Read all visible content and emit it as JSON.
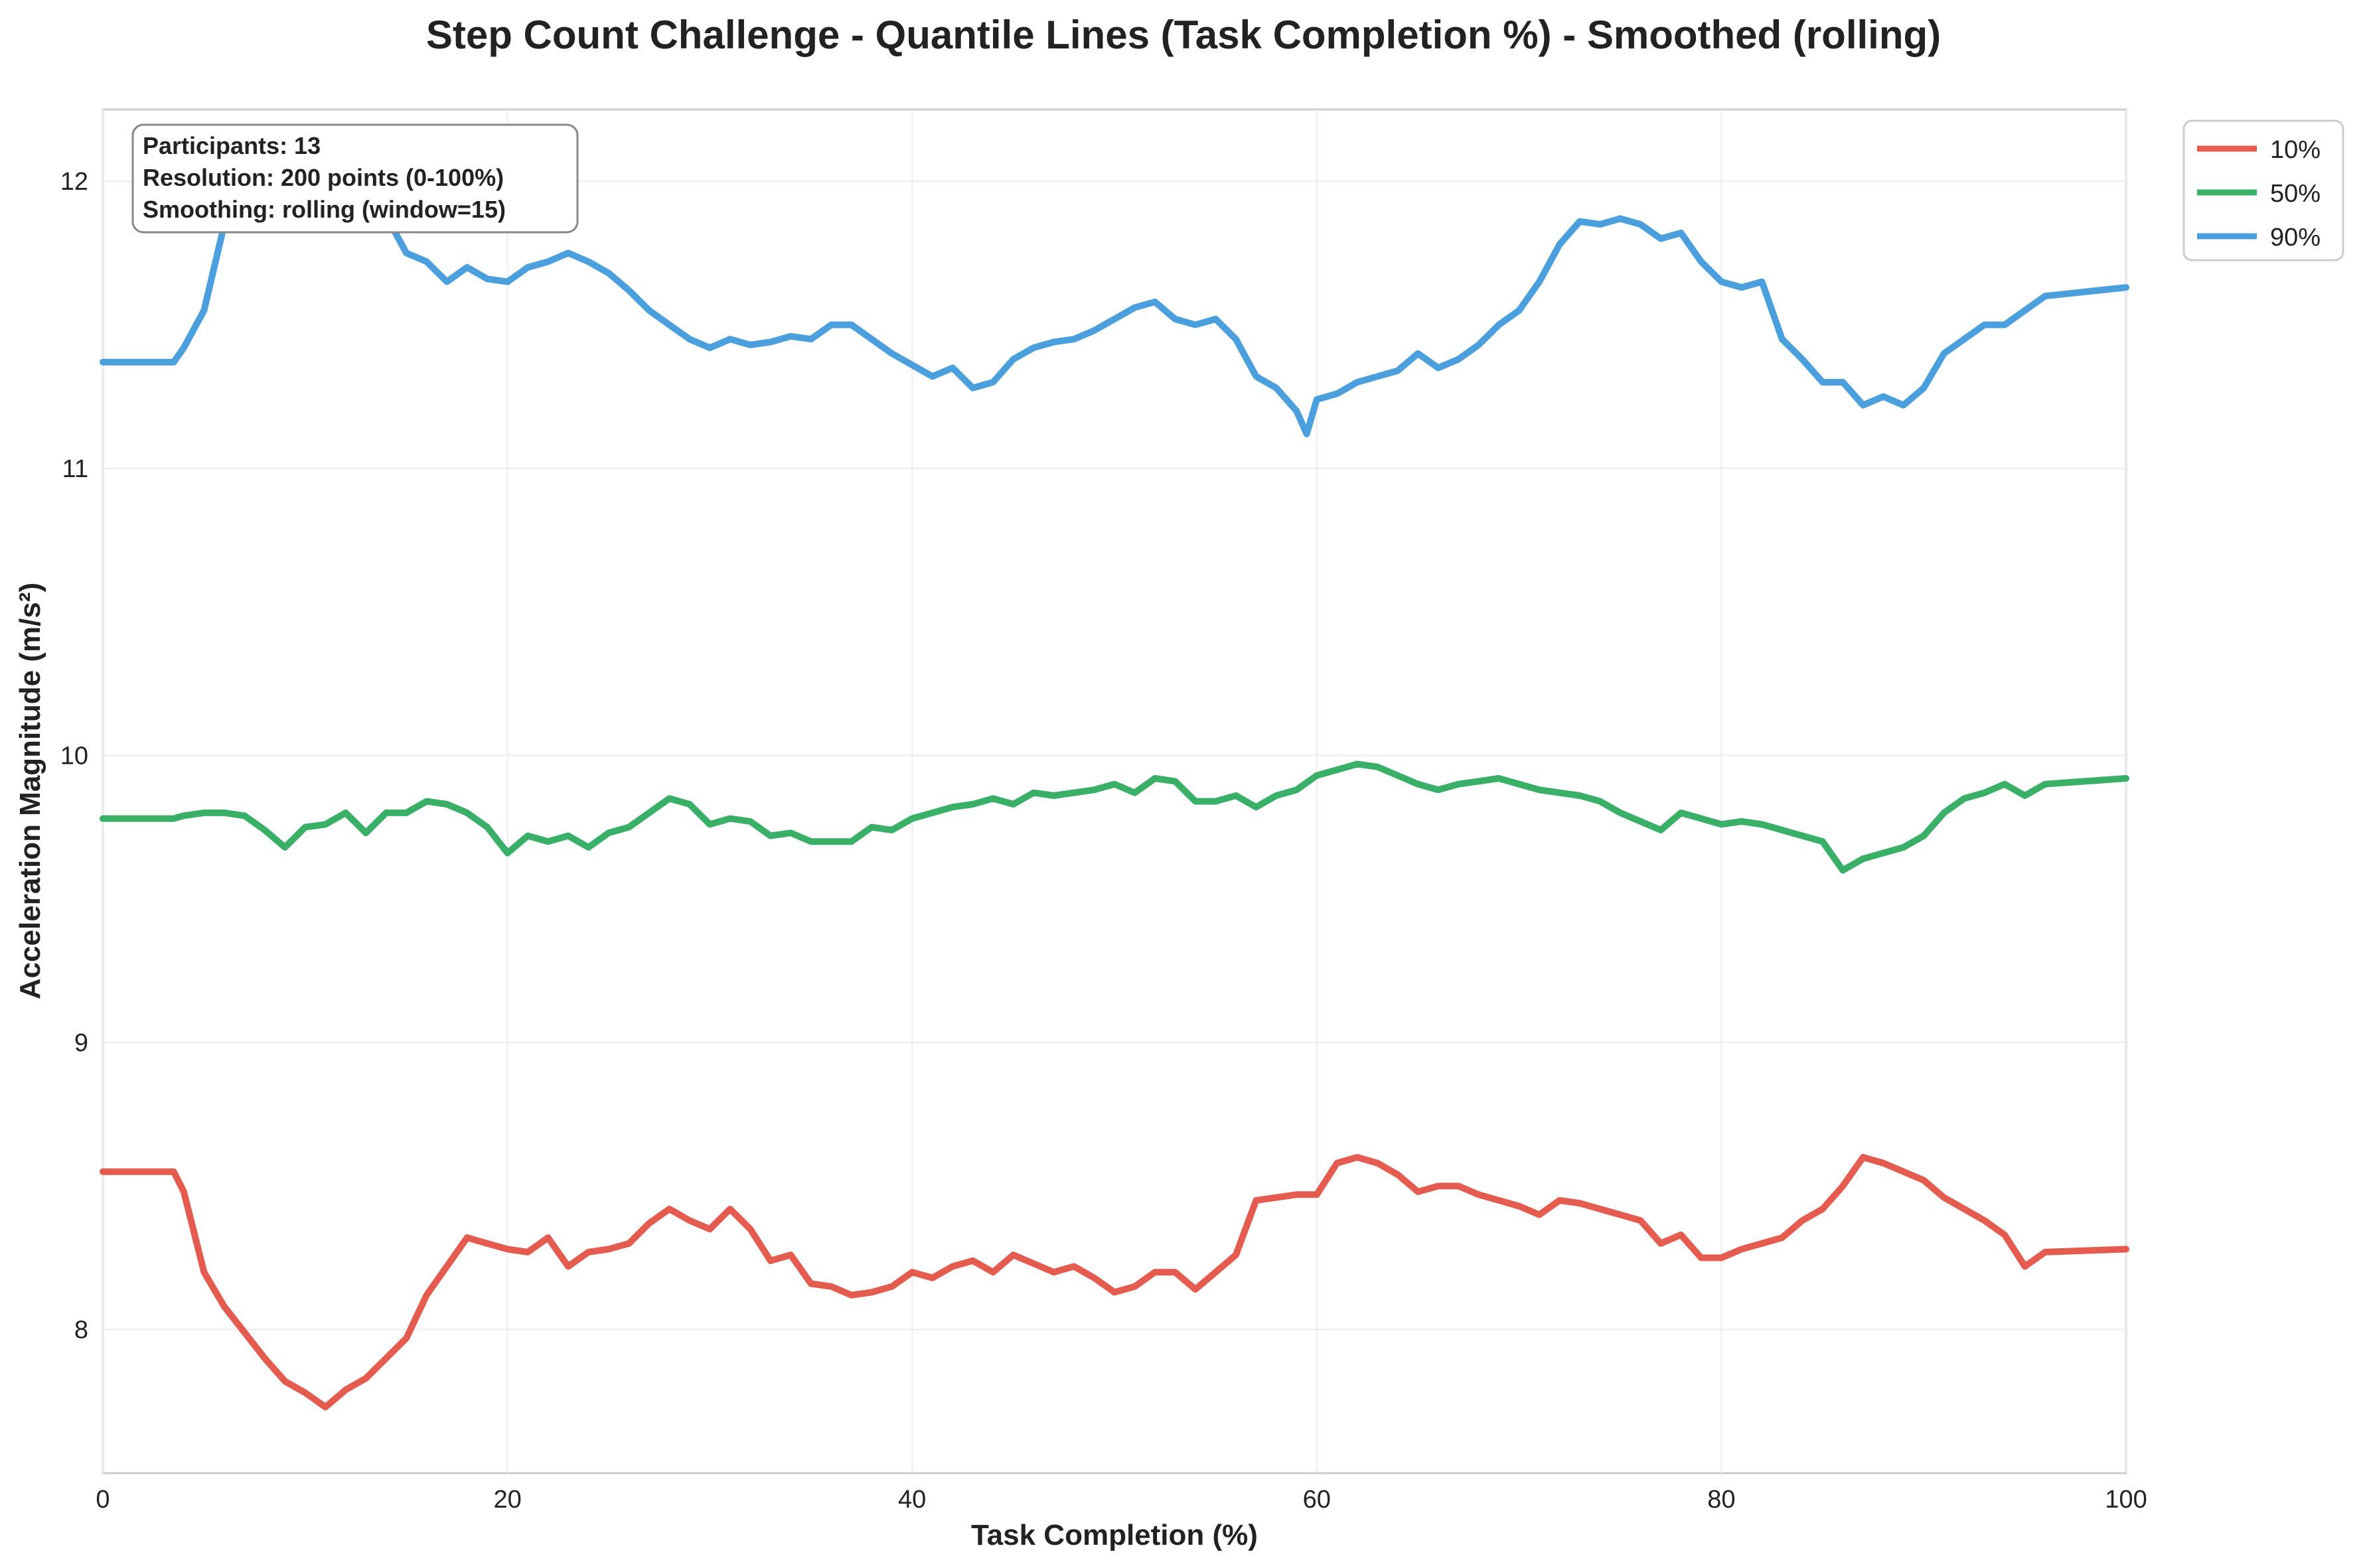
{
  "chart_data": {
    "type": "line",
    "title": "Step Count Challenge - Quantile Lines (Task Completion %) - Smoothed (rolling)",
    "xlabel": "Task Completion (%)",
    "ylabel": "Acceleration Magnitude (m/s²)",
    "xlim": [
      0,
      100
    ],
    "ylim": [
      7.5,
      12.25
    ],
    "xticks": [
      0,
      20,
      40,
      60,
      80,
      100
    ],
    "yticks": [
      8,
      9,
      10,
      11,
      12
    ],
    "grid": true,
    "legend_position": "outside-top-right",
    "info_box": [
      "Participants: 13",
      "Resolution: 200 points (0-100%)",
      "Smoothing: rolling (window=15)"
    ],
    "series": [
      {
        "name": "10%",
        "color": "#e45c4f",
        "x": [
          0,
          3.5,
          4,
          5,
          6,
          7,
          8,
          9,
          10,
          11,
          12,
          13,
          14,
          15,
          16,
          17,
          18,
          19,
          20,
          21,
          22,
          23,
          24,
          25,
          26,
          27,
          28,
          29,
          30,
          31,
          32,
          33,
          34,
          35,
          36,
          37,
          38,
          39,
          40,
          41,
          42,
          43,
          44,
          45,
          46,
          47,
          48,
          49,
          50,
          51,
          52,
          53,
          54,
          55,
          56,
          57,
          58,
          59,
          60,
          61,
          62,
          63,
          64,
          65,
          66,
          67,
          68,
          69,
          70,
          71,
          72,
          73,
          74,
          75,
          76,
          77,
          78,
          79,
          80,
          81,
          82,
          83,
          84,
          85,
          86,
          87,
          88,
          89,
          90,
          91,
          92,
          93,
          94,
          95,
          96,
          100
        ],
        "y": [
          8.55,
          8.55,
          8.48,
          8.2,
          8.08,
          7.99,
          7.9,
          7.82,
          7.78,
          7.73,
          7.79,
          7.83,
          7.9,
          7.97,
          8.12,
          8.22,
          8.32,
          8.3,
          8.28,
          8.27,
          8.32,
          8.22,
          8.27,
          8.28,
          8.3,
          8.37,
          8.42,
          8.38,
          8.35,
          8.42,
          8.35,
          8.24,
          8.26,
          8.16,
          8.15,
          8.12,
          8.13,
          8.15,
          8.2,
          8.18,
          8.22,
          8.24,
          8.2,
          8.26,
          8.23,
          8.2,
          8.22,
          8.18,
          8.13,
          8.15,
          8.2,
          8.2,
          8.14,
          8.2,
          8.26,
          8.45,
          8.46,
          8.47,
          8.47,
          8.58,
          8.6,
          8.58,
          8.54,
          8.48,
          8.5,
          8.5,
          8.47,
          8.45,
          8.43,
          8.4,
          8.45,
          8.44,
          8.42,
          8.4,
          8.38,
          8.3,
          8.33,
          8.25,
          8.25,
          8.28,
          8.3,
          8.32,
          8.38,
          8.42,
          8.5,
          8.6,
          8.58,
          8.55,
          8.52,
          8.46,
          8.42,
          8.38,
          8.33,
          8.22,
          8.27,
          8.28
        ]
      },
      {
        "name": "50%",
        "color": "#3aaf68",
        "x": [
          0,
          3.5,
          4,
          5,
          6,
          7,
          8,
          9,
          10,
          11,
          12,
          13,
          14,
          15,
          16,
          17,
          18,
          19,
          20,
          21,
          22,
          23,
          24,
          25,
          26,
          27,
          28,
          29,
          30,
          31,
          32,
          33,
          34,
          35,
          36,
          37,
          38,
          39,
          40,
          41,
          42,
          43,
          44,
          45,
          46,
          47,
          48,
          49,
          50,
          51,
          52,
          53,
          54,
          55,
          56,
          57,
          58,
          59,
          60,
          61,
          62,
          63,
          64,
          65,
          66,
          67,
          68,
          69,
          70,
          71,
          72,
          73,
          74,
          75,
          76,
          77,
          78,
          79,
          80,
          81,
          82,
          83,
          84,
          85,
          86,
          87,
          88,
          89,
          90,
          91,
          92,
          93,
          94,
          95,
          96,
          100
        ],
        "y": [
          9.78,
          9.78,
          9.79,
          9.8,
          9.8,
          9.79,
          9.74,
          9.68,
          9.75,
          9.76,
          9.8,
          9.73,
          9.8,
          9.8,
          9.84,
          9.83,
          9.8,
          9.75,
          9.66,
          9.72,
          9.7,
          9.72,
          9.68,
          9.73,
          9.75,
          9.8,
          9.85,
          9.83,
          9.76,
          9.78,
          9.77,
          9.72,
          9.73,
          9.7,
          9.7,
          9.7,
          9.75,
          9.74,
          9.78,
          9.8,
          9.82,
          9.83,
          9.85,
          9.83,
          9.87,
          9.86,
          9.87,
          9.88,
          9.9,
          9.87,
          9.92,
          9.91,
          9.84,
          9.84,
          9.86,
          9.82,
          9.86,
          9.88,
          9.93,
          9.95,
          9.97,
          9.96,
          9.93,
          9.9,
          9.88,
          9.9,
          9.91,
          9.92,
          9.9,
          9.88,
          9.87,
          9.86,
          9.84,
          9.8,
          9.77,
          9.74,
          9.8,
          9.78,
          9.76,
          9.77,
          9.76,
          9.74,
          9.72,
          9.7,
          9.6,
          9.64,
          9.66,
          9.68,
          9.72,
          9.8,
          9.85,
          9.87,
          9.9,
          9.86,
          9.9,
          9.92
        ]
      },
      {
        "name": "90%",
        "color": "#4a9fdc",
        "x": [
          0,
          3.5,
          4,
          5,
          6,
          7,
          8,
          9,
          10,
          11,
          12,
          13,
          14,
          15,
          16,
          17,
          18,
          19,
          20,
          21,
          22,
          23,
          24,
          25,
          26,
          27,
          28,
          29,
          30,
          31,
          32,
          33,
          34,
          35,
          36,
          37,
          38,
          39,
          40,
          41,
          42,
          43,
          44,
          45,
          46,
          47,
          48,
          49,
          50,
          51,
          52,
          53,
          54,
          55,
          56,
          57,
          58,
          59,
          59.5,
          60,
          61,
          62,
          63,
          64,
          65,
          66,
          67,
          68,
          69,
          70,
          71,
          72,
          73,
          74,
          75,
          76,
          77,
          78,
          79,
          80,
          81,
          82,
          83,
          84,
          85,
          86,
          87,
          88,
          89,
          90,
          91,
          92,
          93,
          94,
          95,
          96,
          100
        ],
        "y": [
          11.37,
          11.37,
          11.42,
          11.55,
          11.85,
          11.95,
          11.98,
          12.0,
          11.96,
          11.94,
          11.96,
          11.92,
          11.88,
          11.75,
          11.72,
          11.65,
          11.7,
          11.66,
          11.65,
          11.7,
          11.72,
          11.75,
          11.72,
          11.68,
          11.62,
          11.55,
          11.5,
          11.45,
          11.42,
          11.45,
          11.43,
          11.44,
          11.46,
          11.45,
          11.5,
          11.5,
          11.45,
          11.4,
          11.36,
          11.32,
          11.35,
          11.28,
          11.3,
          11.38,
          11.42,
          11.44,
          11.45,
          11.48,
          11.52,
          11.56,
          11.58,
          11.52,
          11.5,
          11.52,
          11.45,
          11.32,
          11.28,
          11.2,
          11.12,
          11.24,
          11.26,
          11.3,
          11.32,
          11.34,
          11.4,
          11.35,
          11.38,
          11.43,
          11.5,
          11.55,
          11.65,
          11.78,
          11.86,
          11.85,
          11.87,
          11.85,
          11.8,
          11.82,
          11.72,
          11.65,
          11.63,
          11.65,
          11.45,
          11.38,
          11.3,
          11.3,
          11.22,
          11.25,
          11.22,
          11.28,
          11.4,
          11.45,
          11.5,
          11.5,
          11.55,
          11.6,
          11.63
        ]
      }
    ]
  }
}
